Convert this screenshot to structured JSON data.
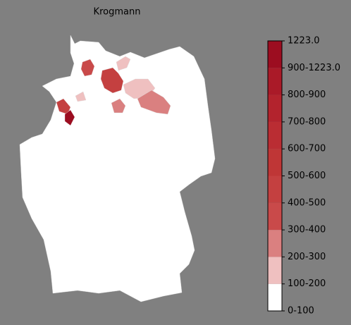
{
  "title": "Krogmann",
  "colorbar": {
    "labels": [
      "0-100",
      "100-200",
      "200-300",
      "300-400",
      "400-500",
      "500-600",
      "600-700",
      "700-800",
      "800-900",
      "900-1223.0",
      "1223.0"
    ],
    "colors": [
      "#ffffff",
      "#efc0c0",
      "#da8080",
      "#c94a4a",
      "#c44040",
      "#bf3636",
      "#ba2d33",
      "#b3232d",
      "#aa1a28",
      "#9c0d20"
    ]
  }
}
